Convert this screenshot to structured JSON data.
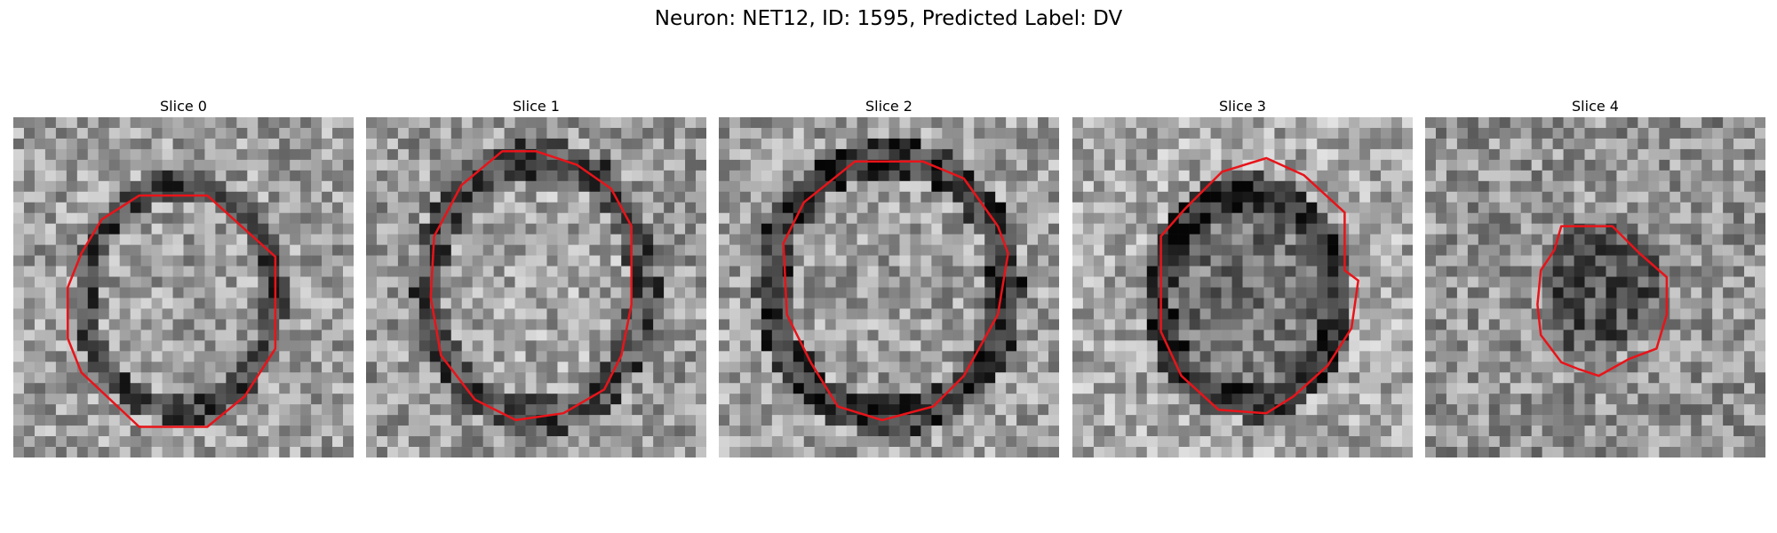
{
  "figure": {
    "title": "Neuron: NET12, ID: 1595, Predicted Label: DV"
  },
  "panels": [
    {
      "title": "Slice 0"
    },
    {
      "title": "Slice 1"
    },
    {
      "title": "Slice 2"
    },
    {
      "title": "Slice 3"
    },
    {
      "title": "Slice 4"
    }
  ],
  "colors": {
    "contour": "#e8141a",
    "background": "#ffffff"
  }
}
